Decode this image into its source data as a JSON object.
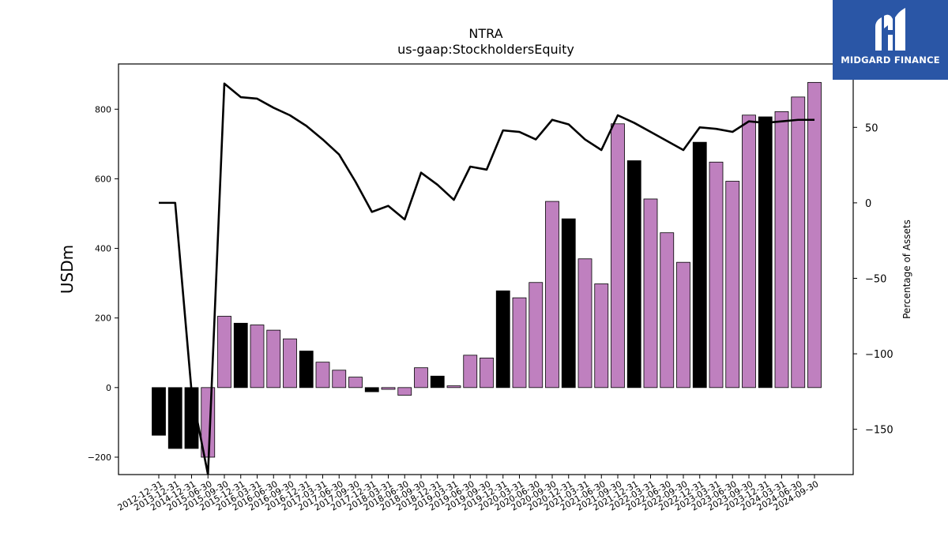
{
  "chart_data": {
    "type": "bar+line",
    "title": "NTRA",
    "subtitle": "us-gaap:StockholdersEquity",
    "ylabel": "USDm",
    "y2label": "Percentage of Assets",
    "ylim": [
      -250,
      930
    ],
    "y2lim": [
      -180,
      92
    ],
    "yticks": [
      -200,
      0,
      200,
      400,
      600,
      800
    ],
    "y2ticks": [
      -150,
      -100,
      -50,
      0,
      50
    ],
    "grid": false,
    "categories": [
      "2012-12-31",
      "2013-12-31",
      "2014-12-31",
      "2015-06-30",
      "2015-09-30",
      "2015-12-31",
      "2016-03-31",
      "2016-06-30",
      "2016-09-30",
      "2016-12-31",
      "2017-03-31",
      "2017-06-30",
      "2017-09-30",
      "2017-12-31",
      "2018-03-31",
      "2018-06-30",
      "2018-09-30",
      "2018-12-31",
      "2019-03-31",
      "2019-06-30",
      "2019-09-30",
      "2019-12-31",
      "2020-03-31",
      "2020-06-30",
      "2020-09-30",
      "2020-12-31",
      "2021-03-31",
      "2021-06-30",
      "2021-09-30",
      "2021-12-31",
      "2022-03-31",
      "2022-06-30",
      "2022-09-30",
      "2022-12-31",
      "2023-03-31",
      "2023-06-30",
      "2023-09-30",
      "2023-12-31",
      "2024-03-31",
      "2024-06-30",
      "2024-09-30"
    ],
    "series": [
      {
        "kind": "bar",
        "axis": "left",
        "values": [
          -137,
          -175,
          -175,
          -200,
          205,
          185,
          180,
          165,
          140,
          105,
          73,
          50,
          30,
          -12,
          -5,
          -22,
          57,
          33,
          5,
          93,
          85,
          278,
          258,
          302,
          535,
          485,
          370,
          298,
          758,
          652,
          542,
          445,
          360,
          705,
          648,
          593,
          783,
          778,
          793,
          835,
          877
        ],
        "colors": [
          "#000000",
          "#000000",
          "#000000",
          "#bf80bf",
          "#bf80bf",
          "#000000",
          "#bf80bf",
          "#bf80bf",
          "#bf80bf",
          "#000000",
          "#bf80bf",
          "#bf80bf",
          "#bf80bf",
          "#000000",
          "#bf80bf",
          "#bf80bf",
          "#bf80bf",
          "#000000",
          "#bf80bf",
          "#bf80bf",
          "#bf80bf",
          "#000000",
          "#bf80bf",
          "#bf80bf",
          "#bf80bf",
          "#000000",
          "#bf80bf",
          "#bf80bf",
          "#bf80bf",
          "#000000",
          "#bf80bf",
          "#bf80bf",
          "#bf80bf",
          "#000000",
          "#bf80bf",
          "#bf80bf",
          "#bf80bf",
          "#000000",
          "#bf80bf",
          "#bf80bf",
          "#bf80bf"
        ]
      },
      {
        "kind": "line",
        "axis": "right",
        "color": "#000000",
        "values": [
          0,
          0,
          -125,
          -180,
          79,
          70,
          69,
          63,
          58,
          51,
          42,
          32,
          14,
          -6,
          -2,
          -11,
          20,
          12,
          2,
          24,
          22,
          48,
          47,
          42,
          55,
          52,
          42,
          35,
          58,
          53,
          47,
          41,
          35,
          50,
          49,
          47,
          54,
          53,
          54,
          55,
          55
        ]
      }
    ]
  },
  "logo": {
    "text": "MIDGARD FINANCE",
    "background": "#2a56a6",
    "icon": "midgard-m-icon"
  }
}
